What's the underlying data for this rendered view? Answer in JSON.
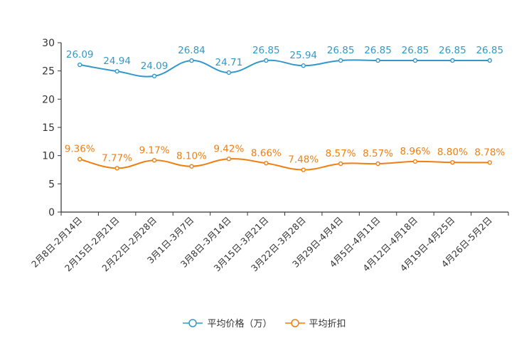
{
  "chart_data": {
    "type": "line",
    "title": "",
    "xlabel": "",
    "ylabel": "",
    "ylim": [
      0,
      30
    ],
    "yticks": [
      0,
      5,
      10,
      15,
      20,
      25,
      30
    ],
    "categories": [
      "2月8日-2月14日",
      "2月15日-2月21日",
      "2月22日-2月28日",
      "3月1日-3月7日",
      "3月8日-3月14日",
      "3月15日-3月21日",
      "3月22日-3月28日",
      "3月29日-4月4日",
      "4月5日-4月11日",
      "4月12日-4月18日",
      "4月19日-4月25日",
      "4月26日-5月2日"
    ],
    "series": [
      {
        "name": "平均价格（万）",
        "color": "#3398c9",
        "values": [
          26.09,
          24.94,
          24.09,
          26.84,
          24.71,
          26.85,
          25.94,
          26.85,
          26.85,
          26.85,
          26.85,
          26.85
        ],
        "labels": [
          "26.09",
          "24.94",
          "24.09",
          "26.84",
          "24.71",
          "26.85",
          "25.94",
          "26.85",
          "26.85",
          "26.85",
          "26.85",
          "26.85"
        ]
      },
      {
        "name": "平均折扣",
        "color": "#f07f12",
        "values": [
          9.36,
          7.77,
          9.17,
          8.1,
          9.42,
          8.66,
          7.48,
          8.57,
          8.57,
          8.96,
          8.8,
          8.78
        ],
        "labels": [
          "9.36%",
          "7.77%",
          "9.17%",
          "8.10%",
          "9.42%",
          "8.66%",
          "7.48%",
          "8.57%",
          "8.57%",
          "8.96%",
          "8.80%",
          "8.78%"
        ]
      }
    ],
    "legend_position": "bottom-center",
    "grid": false
  }
}
